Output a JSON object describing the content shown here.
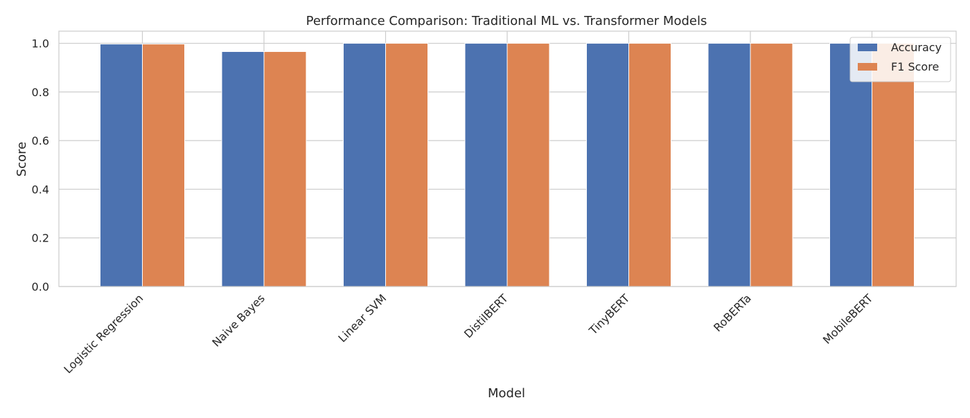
{
  "chart_data": {
    "type": "bar",
    "title": "Performance Comparison: Traditional ML vs. Transformer Models",
    "xlabel": "Model",
    "ylabel": "Score",
    "categories": [
      "Logistic Regression",
      "Naive Bayes",
      "Linear SVM",
      "DistilBERT",
      "TinyBERT",
      "RoBERTa",
      "MobileBERT"
    ],
    "series": [
      {
        "name": "Accuracy",
        "color": "#4c72b0",
        "values": [
          0.997,
          0.966,
          1.0,
          1.0,
          1.0,
          1.0,
          1.0
        ]
      },
      {
        "name": "F1 Score",
        "color": "#dd8452",
        "values": [
          0.997,
          0.966,
          1.0,
          1.0,
          1.0,
          1.0,
          1.0
        ]
      }
    ],
    "ylim": [
      0,
      1.05
    ],
    "yticks": [
      "0.0",
      "0.2",
      "0.4",
      "0.6",
      "0.8",
      "1.0"
    ],
    "grid": true,
    "legend_position": "top-right"
  }
}
